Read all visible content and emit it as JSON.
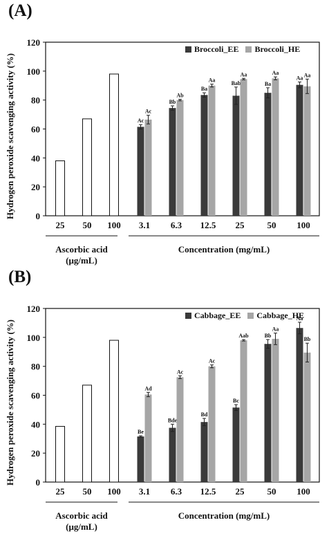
{
  "chart_data": [
    {
      "type": "bar",
      "panel_label": "(A)",
      "ylabel": "Hydrogen peroxide scavenging activity (%)",
      "ylim": [
        0,
        120
      ],
      "yticks": [
        0,
        20,
        40,
        60,
        80,
        100,
        120
      ],
      "colors": {
        "reference": "#ffffff",
        "ee": "#3a3a3a",
        "he": "#a6a6a6"
      },
      "reference": {
        "group_label": [
          "Ascorbic acid",
          "(μg/mL)"
        ],
        "categories": [
          "25",
          "50",
          "100"
        ],
        "values": [
          38,
          67,
          98
        ]
      },
      "sample": {
        "group_label": "Concentration (mg/mL)",
        "categories": [
          "3.1",
          "6.3",
          "12.5",
          "25",
          "50",
          "100"
        ],
        "series": [
          {
            "name": "Broccoli_EE",
            "values": [
              61.5,
              74.5,
              83.5,
              83,
              85,
              90.5
            ],
            "errors": [
              1.5,
              1.5,
              1.5,
              6,
              3.5,
              2
            ],
            "labels": [
              "Ac",
              "Bb",
              "Ba",
              "Bab",
              "Ba",
              "Aa"
            ]
          },
          {
            "name": "Broccoli_HE",
            "values": [
              66.5,
              80,
              90,
              94.5,
              95,
              89.5
            ],
            "errors": [
              3,
              0.5,
              1,
              0.5,
              1,
              5
            ],
            "labels": [
              "Ac",
              "Ab",
              "Aa",
              "Aa",
              "Aa",
              "Aa"
            ]
          }
        ]
      }
    },
    {
      "type": "bar",
      "panel_label": "(B)",
      "ylabel": "Hydrogen peroxide scavenging activity (%)",
      "ylim": [
        0,
        120
      ],
      "yticks": [
        0,
        20,
        40,
        60,
        80,
        100,
        120
      ],
      "colors": {
        "reference": "#ffffff",
        "ee": "#3a3a3a",
        "he": "#a6a6a6"
      },
      "reference": {
        "group_label": [
          "Ascorbic acid",
          "(μg/mL)"
        ],
        "categories": [
          "25",
          "50",
          "100"
        ],
        "values": [
          38.5,
          67,
          98
        ]
      },
      "sample": {
        "group_label": "Concentration (mg/mL)",
        "categories": [
          "3.1",
          "6.3",
          "12.5",
          "25",
          "50",
          "100"
        ],
        "series": [
          {
            "name": "Cabbage_EE",
            "values": [
              31.5,
              37.5,
              41.5,
              51.5,
              95.5,
              106.5
            ],
            "errors": [
              0.5,
              2.5,
              2.5,
              2,
              3,
              4
            ],
            "labels": [
              "Be",
              "Bde",
              "Bd",
              "Bc",
              "Bb",
              "Aa"
            ]
          },
          {
            "name": "Cabbage_HE",
            "values": [
              60.5,
              72.5,
              80,
              98,
              99,
              89.5
            ],
            "errors": [
              1.5,
              1,
              1,
              0.5,
              4,
              6.5
            ],
            "labels": [
              "Ad",
              "Ac",
              "Ac",
              "Aab",
              "Aa",
              "Bb"
            ]
          }
        ]
      }
    }
  ]
}
